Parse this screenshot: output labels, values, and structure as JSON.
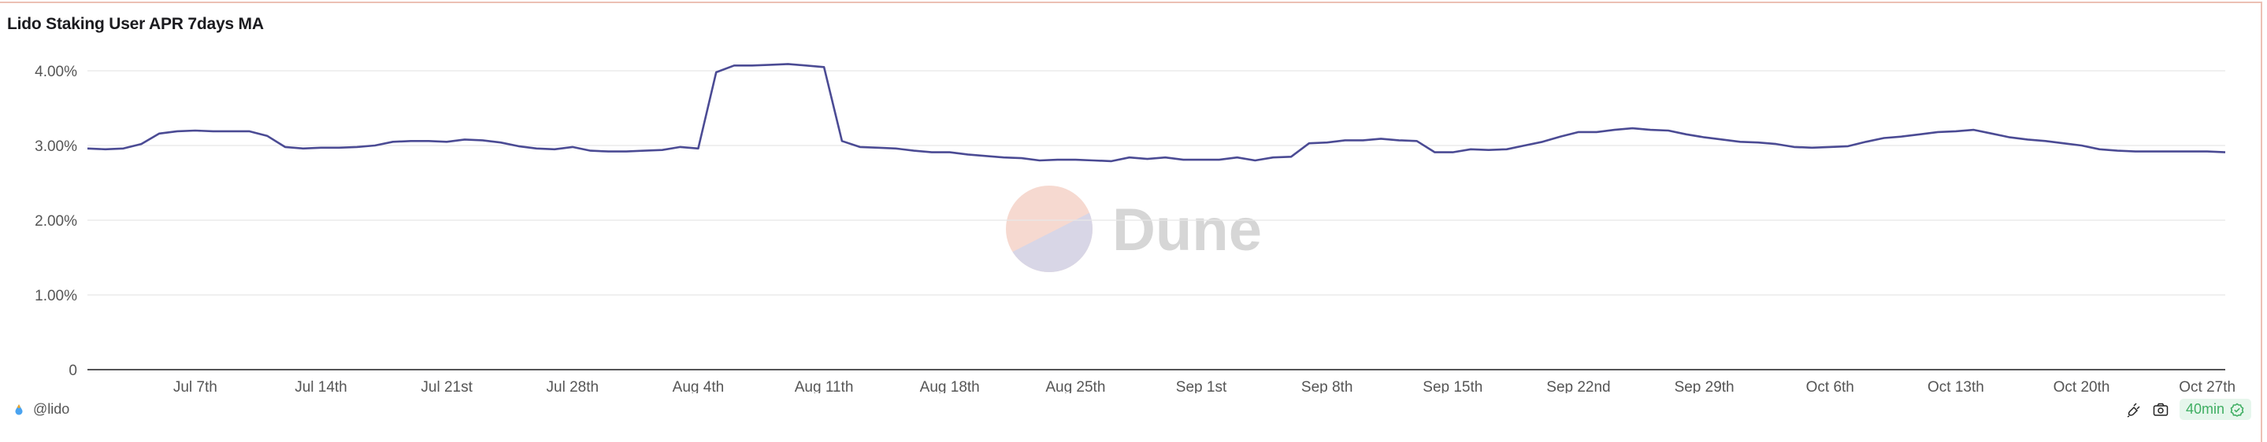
{
  "card": {
    "title": "Lido Staking User APR 7days MA",
    "author": "@lido",
    "refresh_badge": "40min",
    "icons": {
      "author": "lido-drop-icon",
      "embed": "plug-icon",
      "screenshot": "camera-icon",
      "status": "check-badge-icon"
    },
    "watermark": "Dune"
  },
  "colors": {
    "line": "#4b4b94",
    "grid": "#e8e8e8",
    "axis": "#1b1b1f",
    "badge_text": "#3fae62",
    "badge_bg": "#e6f6ec",
    "border": "#ecc0b4"
  },
  "chart_data": {
    "type": "line",
    "title": "Lido Staking User APR 7days MA",
    "xlabel": "",
    "ylabel": "",
    "ylim": [
      0,
      4
    ],
    "y_ticks": [
      0,
      1,
      2,
      3,
      4
    ],
    "y_tick_labels": [
      "0",
      "1.00%",
      "2.00%",
      "3.00%",
      "4.00%"
    ],
    "x_tick_labels": [
      "Jul 7th",
      "Jul 14th",
      "Jul 21st",
      "Jul 28th",
      "Aug 4th",
      "Aug 11th",
      "Aug 18th",
      "Aug 25th",
      "Sep 1st",
      "Sep 8th",
      "Sep 15th",
      "Sep 22nd",
      "Sep 29th",
      "Oct 6th",
      "Oct 13th",
      "Oct 20th",
      "Oct 27th"
    ],
    "x_tick_dates": [
      "Jul 7",
      "Jul 14",
      "Jul 21",
      "Jul 28",
      "Aug 4",
      "Aug 11",
      "Aug 18",
      "Aug 25",
      "Sep 1",
      "Sep 8",
      "Sep 15",
      "Sep 22",
      "Sep 29",
      "Oct 6",
      "Oct 13",
      "Oct 20",
      "Oct 27"
    ],
    "grid": true,
    "legend": "none",
    "x": [
      "Jul 1",
      "Jul 2",
      "Jul 3",
      "Jul 4",
      "Jul 5",
      "Jul 6",
      "Jul 7",
      "Jul 8",
      "Jul 9",
      "Jul 10",
      "Jul 11",
      "Jul 12",
      "Jul 13",
      "Jul 14",
      "Jul 15",
      "Jul 16",
      "Jul 17",
      "Jul 18",
      "Jul 19",
      "Jul 20",
      "Jul 21",
      "Jul 22",
      "Jul 23",
      "Jul 24",
      "Jul 25",
      "Jul 26",
      "Jul 27",
      "Jul 28",
      "Jul 29",
      "Jul 30",
      "Jul 31",
      "Aug 1",
      "Aug 2",
      "Aug 3",
      "Aug 4",
      "Aug 5",
      "Aug 6",
      "Aug 7",
      "Aug 8",
      "Aug 9",
      "Aug 10",
      "Aug 11",
      "Aug 12",
      "Aug 13",
      "Aug 14",
      "Aug 15",
      "Aug 16",
      "Aug 17",
      "Aug 18",
      "Aug 19",
      "Aug 20",
      "Aug 21",
      "Aug 22",
      "Aug 23",
      "Aug 24",
      "Aug 25",
      "Aug 26",
      "Aug 27",
      "Aug 28",
      "Aug 29",
      "Aug 30",
      "Aug 31",
      "Sep 1",
      "Sep 2",
      "Sep 3",
      "Sep 4",
      "Sep 5",
      "Sep 6",
      "Sep 7",
      "Sep 8",
      "Sep 9",
      "Sep 10",
      "Sep 11",
      "Sep 12",
      "Sep 13",
      "Sep 14",
      "Sep 15",
      "Sep 16",
      "Sep 17",
      "Sep 18",
      "Sep 19",
      "Sep 20",
      "Sep 21",
      "Sep 22",
      "Sep 23",
      "Sep 24",
      "Sep 25",
      "Sep 26",
      "Sep 27",
      "Sep 28",
      "Sep 29",
      "Sep 30",
      "Oct 1",
      "Oct 2",
      "Oct 3",
      "Oct 4",
      "Oct 5",
      "Oct 6",
      "Oct 7",
      "Oct 8",
      "Oct 9",
      "Oct 10",
      "Oct 11",
      "Oct 12",
      "Oct 13",
      "Oct 14",
      "Oct 15",
      "Oct 16",
      "Oct 17",
      "Oct 18",
      "Oct 19",
      "Oct 20",
      "Oct 21",
      "Oct 22",
      "Oct 23",
      "Oct 24",
      "Oct 25",
      "Oct 26",
      "Oct 27",
      "Oct 28"
    ],
    "series": [
      {
        "values": [
          2.96,
          2.95,
          2.96,
          3.02,
          3.16,
          3.19,
          3.2,
          3.19,
          3.19,
          3.19,
          3.13,
          2.98,
          2.96,
          2.97,
          2.97,
          2.98,
          3.0,
          3.05,
          3.06,
          3.06,
          3.05,
          3.08,
          3.07,
          3.04,
          2.99,
          2.96,
          2.95,
          2.98,
          2.93,
          2.92,
          2.92,
          2.93,
          2.94,
          2.98,
          2.96,
          3.98,
          4.07,
          4.07,
          4.08,
          4.09,
          4.07,
          4.05,
          3.06,
          2.98,
          2.97,
          2.96,
          2.93,
          2.91,
          2.91,
          2.88,
          2.86,
          2.84,
          2.83,
          2.8,
          2.81,
          2.81,
          2.8,
          2.79,
          2.84,
          2.82,
          2.84,
          2.81,
          2.81,
          2.81,
          2.84,
          2.8,
          2.84,
          2.85,
          3.03,
          3.04,
          3.07,
          3.07,
          3.09,
          3.07,
          3.06,
          2.91,
          2.91,
          2.95,
          2.94,
          2.95,
          3.0,
          3.05,
          3.12,
          3.18,
          3.18,
          3.21,
          3.23,
          3.21,
          3.2,
          3.15,
          3.11,
          3.08,
          3.05,
          3.04,
          3.02,
          2.98,
          2.97,
          2.98,
          2.99,
          3.05,
          3.1,
          3.12,
          3.15,
          3.18,
          3.19,
          3.21,
          3.16,
          3.11,
          3.08,
          3.06,
          3.03,
          3.0,
          2.95,
          2.93,
          2.92,
          2.92,
          2.92,
          2.92,
          2.92,
          2.91
        ]
      }
    ]
  }
}
